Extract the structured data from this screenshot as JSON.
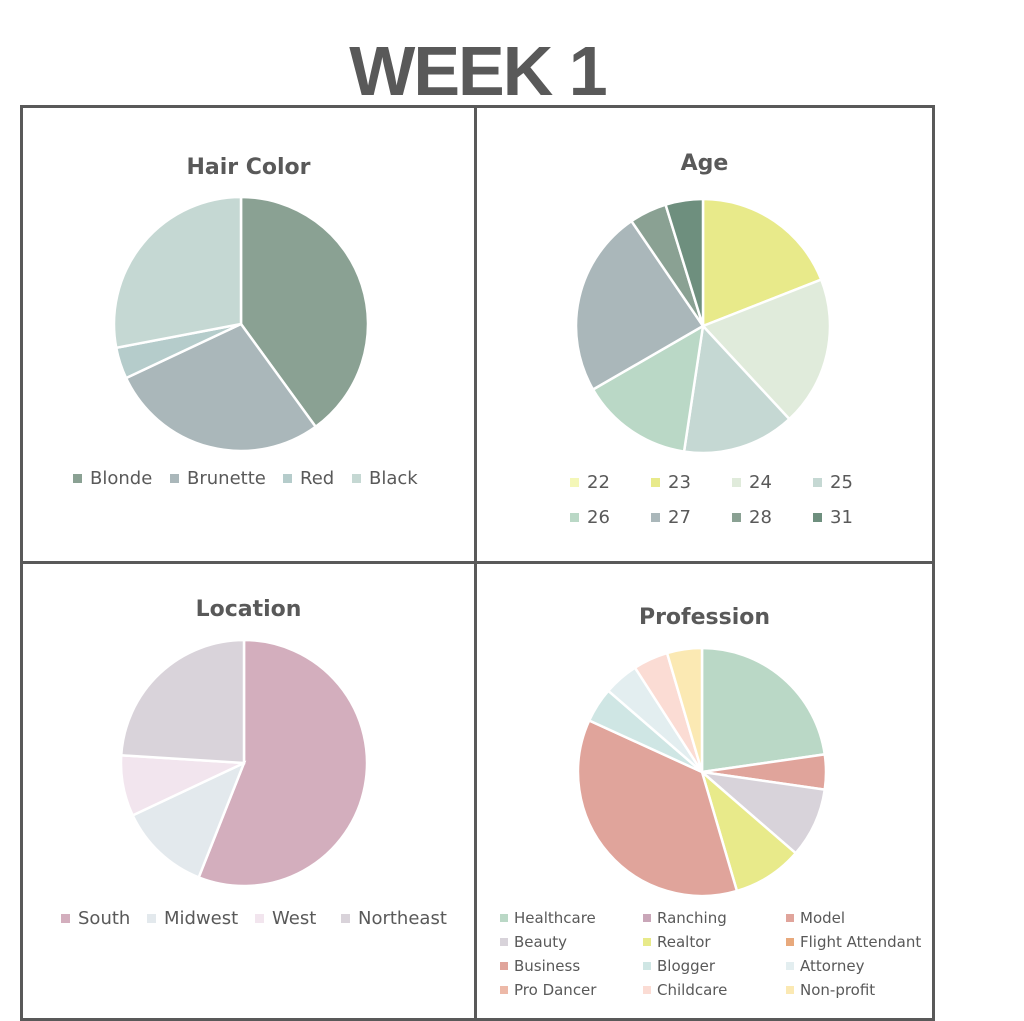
{
  "page": {
    "title": "WEEK 1"
  },
  "chart_data": [
    {
      "type": "pie",
      "title": "Hair Color",
      "labels": [
        "Blonde",
        "Brunette",
        "Red",
        "Black"
      ],
      "values": [
        10,
        7,
        1,
        7
      ],
      "colors": [
        "#8aa193",
        "#aab7ba",
        "#b5cccb",
        "#c5d8d3"
      ],
      "legend": "bottom"
    },
    {
      "type": "pie",
      "title": "Age",
      "labels": [
        "22",
        "23",
        "24",
        "25",
        "26",
        "27",
        "28",
        "31"
      ],
      "values": [
        0,
        4,
        4,
        3,
        3,
        5,
        1,
        1
      ],
      "colors": [
        "#f4f7b8",
        "#e8ea8a",
        "#e0ebdb",
        "#c5d8d3",
        "#bad8c6",
        "#aab7ba",
        "#8aa193",
        "#6e8f7e"
      ],
      "legend": "bottom"
    },
    {
      "type": "pie",
      "title": "Location",
      "labels": [
        "South",
        "Midwest",
        "West",
        "Northeast"
      ],
      "values": [
        14,
        3,
        2,
        6
      ],
      "colors": [
        "#d3aebd",
        "#e3e9ed",
        "#f2e5ee",
        "#d9d3da"
      ],
      "legend": "bottom"
    },
    {
      "type": "pie",
      "title": "Profession",
      "labels": [
        "Healthcare",
        "Ranching",
        "Model",
        "Beauty",
        "Realtor",
        "Flight Attendant",
        "Business",
        "Blogger",
        "Attorney",
        "Pro Dancer",
        "Childcare",
        "Non-profit"
      ],
      "values": [
        5,
        0,
        1,
        2,
        2,
        0,
        8,
        1,
        1,
        0,
        1,
        1
      ],
      "colors": [
        "#bad8c6",
        "#c9a6b8",
        "#e0a49b",
        "#d8d3da",
        "#e8ea8a",
        "#e8a97c",
        "#e0a49b",
        "#cfe6e4",
        "#e3eef0",
        "#edb9a8",
        "#fbdcd4",
        "#fbe9b3"
      ],
      "legend": "bottom"
    }
  ]
}
